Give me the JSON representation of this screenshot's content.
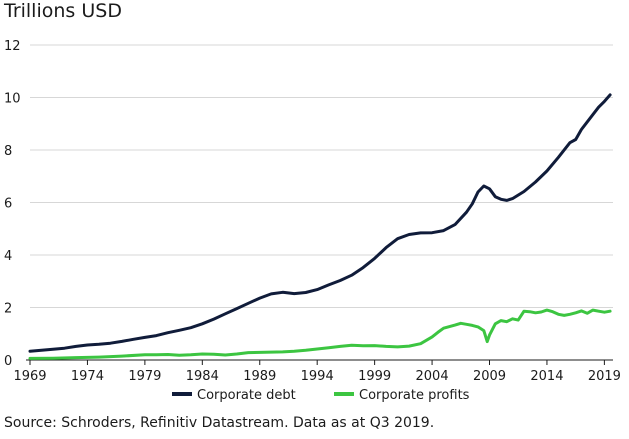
{
  "chart_data": {
    "type": "line",
    "title": "Trillions USD",
    "xlabel": "",
    "ylabel": "Trillions USD",
    "xlim": [
      1969,
      2019.75
    ],
    "ylim": [
      0,
      12
    ],
    "grid": true,
    "legend_position": "bottom-center",
    "y_ticks": [
      "0",
      "2",
      "4",
      "6",
      "8",
      "10",
      "12"
    ],
    "x_ticks": [
      "1969",
      "1974",
      "1979",
      "1984",
      "1989",
      "1994",
      "1999",
      "2004",
      "2009",
      "2014",
      "2019"
    ],
    "colors": {
      "Corporate debt": "#101c3a",
      "Corporate profits": "#3cc541"
    },
    "series": [
      {
        "name": "Corporate debt",
        "x": [
          1969,
          1970,
          1971,
          1972,
          1973,
          1974,
          1975,
          1976,
          1977,
          1978,
          1979,
          1980,
          1981,
          1982,
          1983,
          1984,
          1985,
          1986,
          1987,
          1988,
          1989,
          1990,
          1991,
          1992,
          1993,
          1994,
          1995,
          1996,
          1997,
          1998,
          1999,
          2000,
          2001,
          2002,
          2003,
          2004,
          2005,
          2006,
          2007,
          2007.5,
          2008,
          2008.5,
          2009,
          2009.5,
          2010,
          2010.5,
          2011,
          2012,
          2013,
          2014,
          2015,
          2016,
          2016.5,
          2017,
          2018,
          2018.5,
          2019,
          2019.5
        ],
        "values": [
          0.33,
          0.37,
          0.41,
          0.45,
          0.52,
          0.57,
          0.6,
          0.64,
          0.71,
          0.79,
          0.86,
          0.93,
          1.04,
          1.13,
          1.23,
          1.38,
          1.56,
          1.76,
          1.96,
          2.16,
          2.36,
          2.52,
          2.58,
          2.53,
          2.57,
          2.68,
          2.86,
          3.03,
          3.23,
          3.52,
          3.87,
          4.28,
          4.62,
          4.78,
          4.84,
          4.85,
          4.93,
          5.16,
          5.63,
          5.95,
          6.4,
          6.63,
          6.52,
          6.22,
          6.12,
          6.08,
          6.15,
          6.42,
          6.78,
          7.2,
          7.72,
          8.28,
          8.4,
          8.78,
          9.35,
          9.63,
          9.85,
          10.1
        ]
      },
      {
        "name": "Corporate profits",
        "x": [
          1969,
          1971,
          1973,
          1975,
          1977,
          1979,
          1980,
          1981,
          1982,
          1983,
          1984,
          1985,
          1986,
          1987,
          1988,
          1989,
          1990,
          1991,
          1992,
          1993,
          1994,
          1995,
          1996,
          1997,
          1998,
          1999,
          2000,
          2001,
          2002,
          2003,
          2004,
          2004.5,
          2005,
          2006,
          2006.5,
          2007,
          2007.5,
          2008,
          2008.5,
          2008.8,
          2009,
          2009.5,
          2010,
          2010.5,
          2011,
          2011.5,
          2012,
          2012.5,
          2013,
          2013.5,
          2014,
          2014.5,
          2015,
          2015.5,
          2016,
          2016.5,
          2017,
          2017.5,
          2018,
          2018.5,
          2019,
          2019.5
        ],
        "values": [
          0.06,
          0.07,
          0.09,
          0.11,
          0.15,
          0.2,
          0.2,
          0.21,
          0.18,
          0.2,
          0.23,
          0.22,
          0.19,
          0.23,
          0.28,
          0.29,
          0.3,
          0.31,
          0.33,
          0.37,
          0.42,
          0.47,
          0.52,
          0.56,
          0.54,
          0.55,
          0.52,
          0.5,
          0.53,
          0.62,
          0.88,
          1.05,
          1.21,
          1.33,
          1.4,
          1.36,
          1.32,
          1.26,
          1.12,
          0.7,
          0.95,
          1.38,
          1.5,
          1.46,
          1.57,
          1.52,
          1.86,
          1.84,
          1.8,
          1.83,
          1.9,
          1.84,
          1.74,
          1.7,
          1.74,
          1.8,
          1.87,
          1.78,
          1.9,
          1.86,
          1.82,
          1.86
        ]
      }
    ]
  },
  "source_note": "Source: Schroders, Refinitiv Datastream. Data as at Q3 2019."
}
